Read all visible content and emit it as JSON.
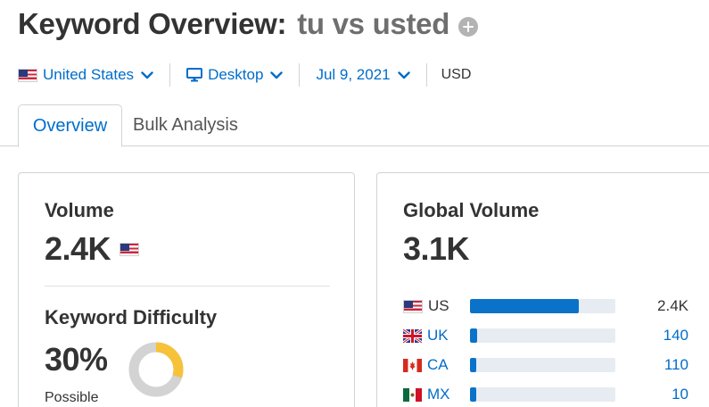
{
  "header": {
    "title": "Keyword Overview:",
    "keyword": "tu vs usted",
    "add_icon": "plus-circle-icon"
  },
  "filters": {
    "database": "United States",
    "device": "Desktop",
    "date": "Jul 9, 2021",
    "currency": "USD"
  },
  "tabs": [
    {
      "label": "Overview",
      "active": true
    },
    {
      "label": "Bulk Analysis",
      "active": false
    }
  ],
  "volume": {
    "label": "Volume",
    "value": "2.4K",
    "country_flag": "us-flag-icon"
  },
  "keyword_difficulty": {
    "label": "Keyword Difficulty",
    "value": "30%",
    "level": "Possible",
    "percent": 30,
    "ring_color": "#f6c23a",
    "ring_bg": "#d3d3d3"
  },
  "global_volume": {
    "label": "Global Volume",
    "value": "3.1K",
    "rows": [
      {
        "code": "US",
        "value": "2.4K",
        "share": 0.75,
        "linked": false
      },
      {
        "code": "UK",
        "value": "140",
        "share": 0.05,
        "linked": true
      },
      {
        "code": "CA",
        "value": "110",
        "share": 0.03,
        "linked": true
      },
      {
        "code": "MX",
        "value": "10",
        "share": 0.02,
        "linked": true
      }
    ]
  },
  "colors": {
    "accent": "#006dca",
    "bar": "#0a73c9",
    "bar_track": "#e6ecf2"
  }
}
